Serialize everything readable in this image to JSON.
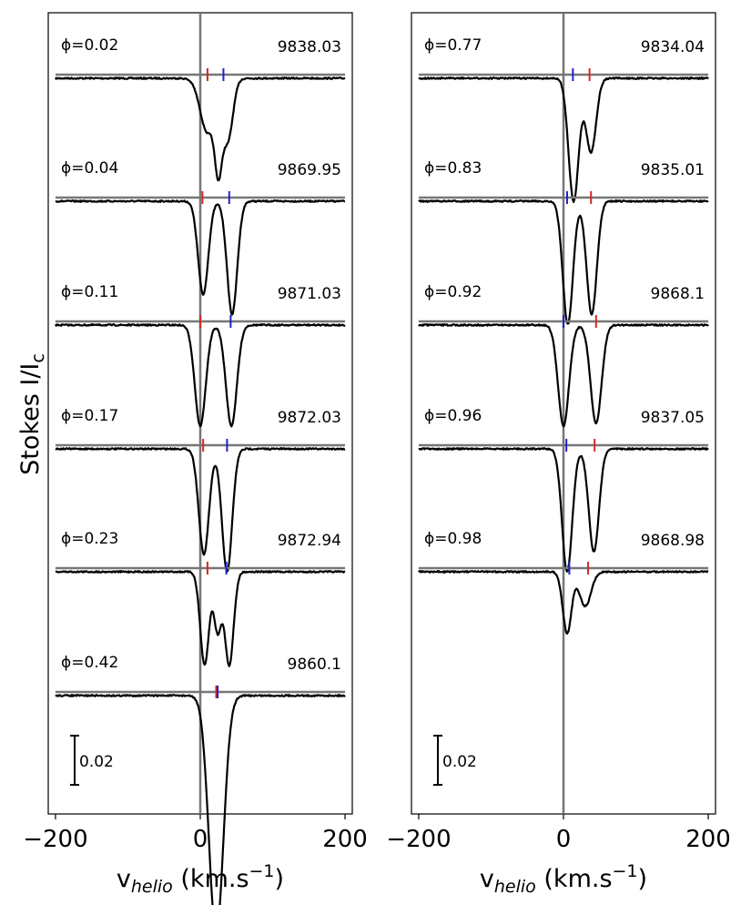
{
  "chart_data": {
    "type": "line",
    "title": "",
    "ylabel": "Stokes I/I",
    "ylabel_sub": "c",
    "xlabel": "v",
    "xlabel_sub": "helio",
    "xlabel_unit": " (km.s",
    "xlabel_exp": "−1",
    "xlabel_close": ")",
    "xlim": [
      -210,
      210
    ],
    "x_ticks": [
      -200,
      0,
      200
    ],
    "x_tick_labels": [
      "−200",
      "0",
      "200"
    ],
    "scale_bar_value": 0.02,
    "scale_bar_label": "0.02",
    "reference_velocity": 0,
    "colors": {
      "profile": "#000000",
      "continuum": "#777777",
      "primary_marker": "#d62728",
      "secondary_marker": "#1f1fd6"
    },
    "panels": [
      {
        "name": "left",
        "observations": [
          {
            "phase": "0.02",
            "hjd": "9838.03",
            "red_v": 10,
            "blue_v": 32,
            "components": [
              {
                "v": 10,
                "depth": 0.022,
                "width": 10
              },
              {
                "v": 25,
                "depth": 0.03,
                "width": 5
              },
              {
                "v": 38,
                "depth": 0.025,
                "width": 7
              }
            ]
          },
          {
            "phase": "0.04",
            "hjd": "9869.95",
            "red_v": 3,
            "blue_v": 40,
            "components": [
              {
                "v": 4,
                "depth": 0.038,
                "width": 7
              },
              {
                "v": 44,
                "depth": 0.046,
                "width": 7
              }
            ]
          },
          {
            "phase": "0.11",
            "hjd": "9871.03",
            "red_v": 0,
            "blue_v": 42,
            "components": [
              {
                "v": 0,
                "depth": 0.041,
                "width": 7.5
              },
              {
                "v": 43,
                "depth": 0.041,
                "width": 7.5
              }
            ]
          },
          {
            "phase": "0.17",
            "hjd": "9872.03",
            "red_v": 4,
            "blue_v": 37,
            "components": [
              {
                "v": 5,
                "depth": 0.043,
                "width": 7
              },
              {
                "v": 37,
                "depth": 0.05,
                "width": 7
              }
            ]
          },
          {
            "phase": "0.23",
            "hjd": "9872.94",
            "red_v": 10,
            "blue_v": 36,
            "components": [
              {
                "v": 6,
                "depth": 0.038,
                "width": 6
              },
              {
                "v": 24,
                "depth": 0.024,
                "width": 5
              },
              {
                "v": 40,
                "depth": 0.038,
                "width": 6
              }
            ]
          },
          {
            "phase": "0.42",
            "hjd": "9860.1",
            "red_v": 22,
            "blue_v": 24,
            "components": [
              {
                "v": 22,
                "depth": 0.097,
                "width": 10
              }
            ]
          }
        ]
      },
      {
        "name": "right",
        "observations": [
          {
            "phase": "0.77",
            "hjd": "9834.04",
            "red_v": 36,
            "blue_v": 13,
            "components": [
              {
                "v": 14,
                "depth": 0.05,
                "width": 7
              },
              {
                "v": 38,
                "depth": 0.03,
                "width": 7
              }
            ]
          },
          {
            "phase": "0.83",
            "hjd": "9835.01",
            "red_v": 38,
            "blue_v": 5,
            "components": [
              {
                "v": 6,
                "depth": 0.05,
                "width": 7
              },
              {
                "v": 39,
                "depth": 0.046,
                "width": 7
              }
            ]
          },
          {
            "phase": "0.92",
            "hjd": "9868.1",
            "red_v": 45,
            "blue_v": 0,
            "components": [
              {
                "v": 0,
                "depth": 0.041,
                "width": 7.5
              },
              {
                "v": 45,
                "depth": 0.04,
                "width": 7.5
              }
            ]
          },
          {
            "phase": "0.96",
            "hjd": "9837.05",
            "red_v": 43,
            "blue_v": 4,
            "components": [
              {
                "v": 5,
                "depth": 0.05,
                "width": 7
              },
              {
                "v": 42,
                "depth": 0.042,
                "width": 7
              }
            ]
          },
          {
            "phase": "0.98",
            "hjd": "9868.98",
            "red_v": 34,
            "blue_v": 8,
            "components": [
              {
                "v": 5,
                "depth": 0.025,
                "width": 6
              },
              {
                "v": 30,
                "depth": 0.014,
                "width": 8
              }
            ]
          }
        ]
      }
    ]
  }
}
